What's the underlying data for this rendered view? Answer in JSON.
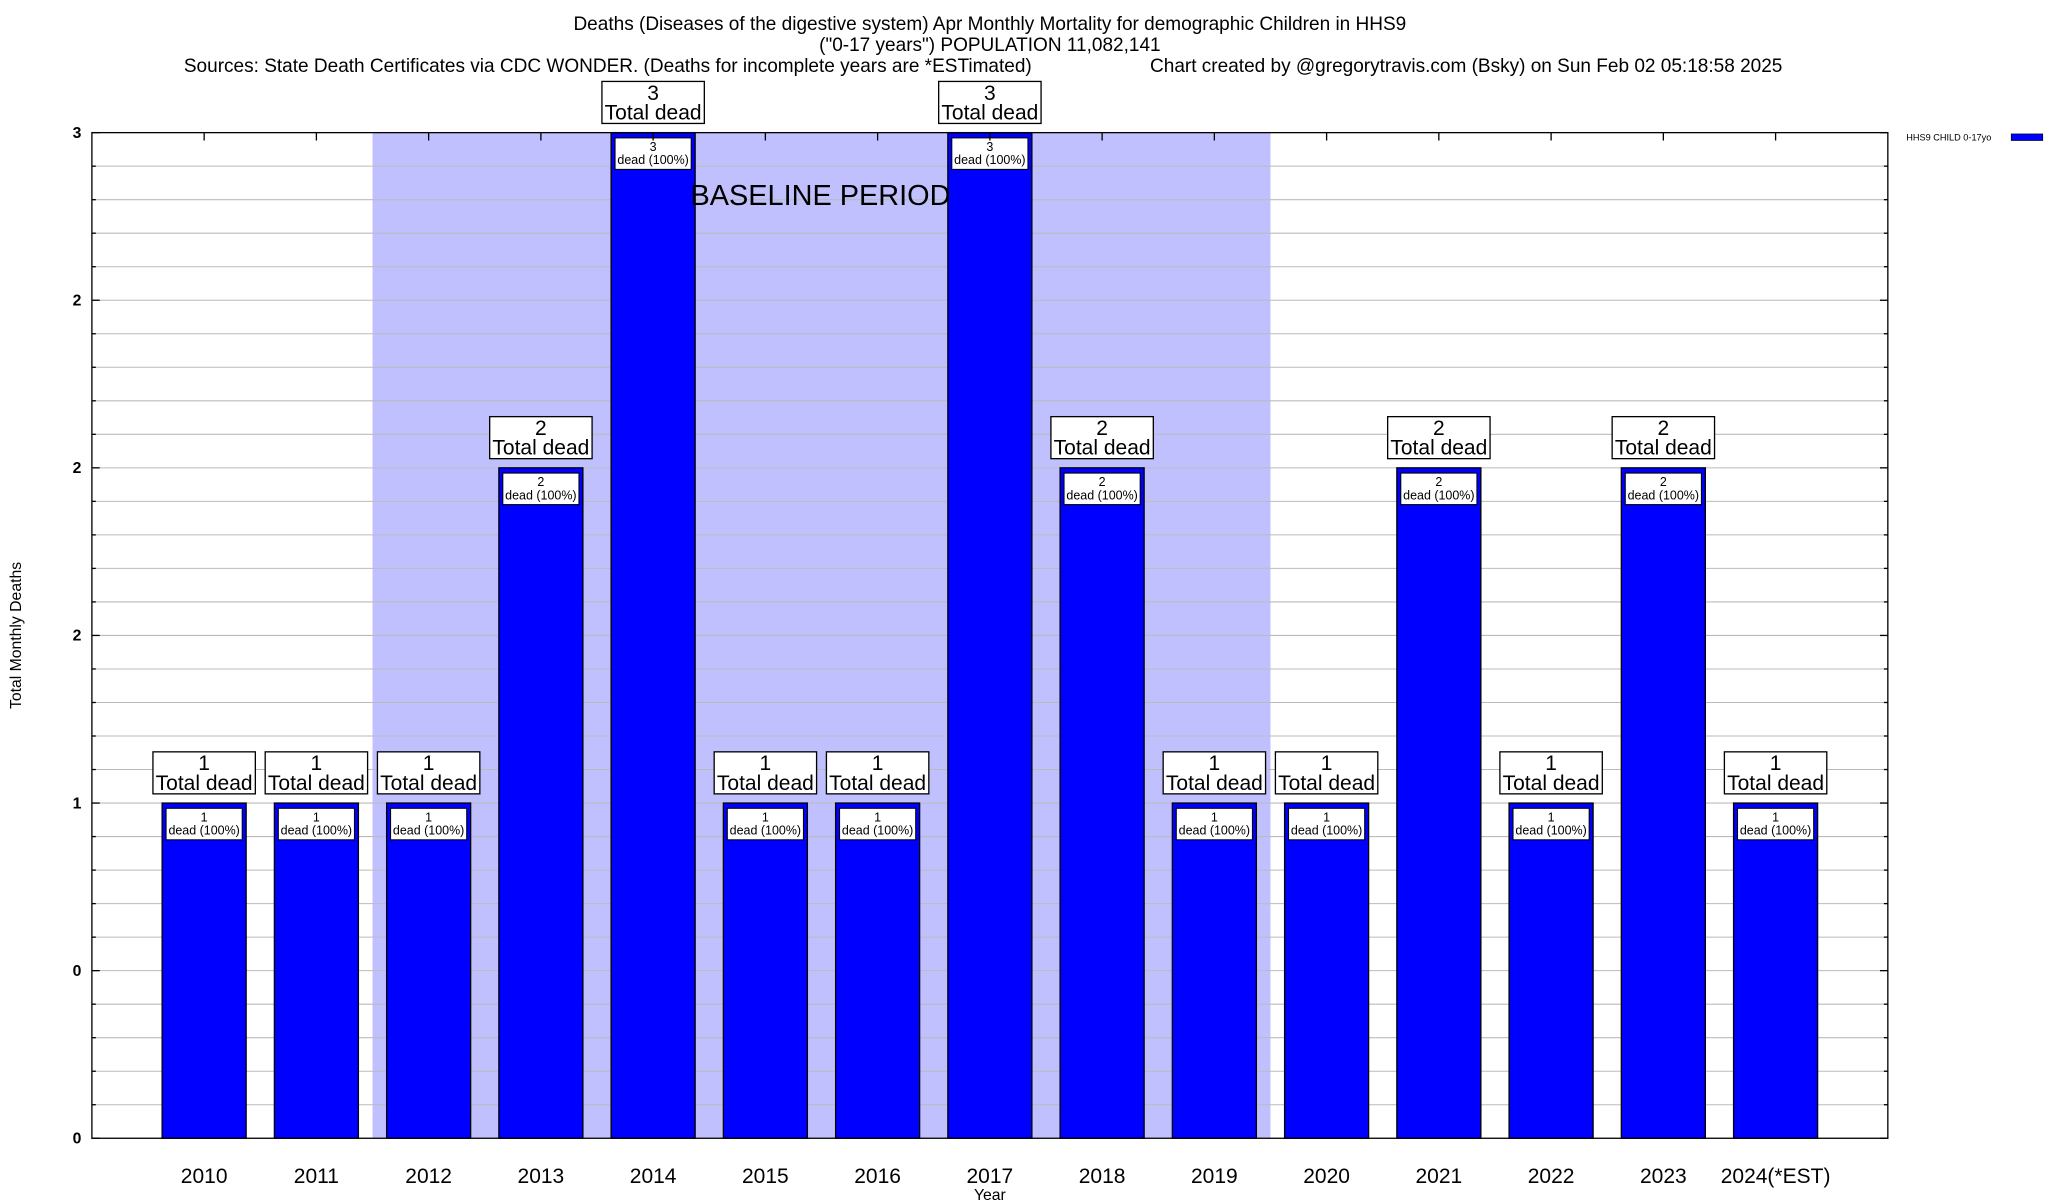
{
  "chart_data": {
    "type": "bar",
    "title_lines": [
      "Deaths (Diseases of the digestive system) Apr Monthly Mortality for demographic Children in HHS9",
      "(\"0-17 years\") POPULATION 11,082,141"
    ],
    "sources": "Sources: State Death Certificates via CDC WONDER. (Deaths for incomplete years are *ESTimated)",
    "credit": "Chart created by @gregorytravis.com (Bsky) on Sun Feb 02 05:18:58 2025",
    "xlabel": "Year",
    "ylabel": "Total Monthly Deaths",
    "ylim": [
      0,
      3
    ],
    "y_ticks": [
      0,
      0.5,
      1,
      1.5,
      2,
      2.5,
      3
    ],
    "y_tick_labels": [
      "0",
      "0",
      "1",
      "2",
      "2",
      "2",
      "3"
    ],
    "grid": true,
    "categories": [
      "2010",
      "2011",
      "2012",
      "2013",
      "2014",
      "2015",
      "2016",
      "2017",
      "2018",
      "2019",
      "2020",
      "2021",
      "2022",
      "2023",
      "2024(*EST)"
    ],
    "series": [
      {
        "name": "HHS9 CHILD 0-17yo",
        "color": "#0000ff",
        "values": [
          1,
          1,
          1,
          2,
          3,
          1,
          1,
          3,
          2,
          1,
          1,
          2,
          1,
          2,
          1
        ],
        "percents": [
          "100%",
          "100%",
          "100%",
          "100%",
          "100%",
          "100%",
          "100%",
          "100%",
          "100%",
          "100%",
          "100%",
          "100%",
          "100%",
          "100%",
          "100%"
        ]
      }
    ],
    "bar_label_total": "Total dead",
    "bar_label_dead": "dead",
    "baseline_period": {
      "label": "BASELINE PERIOD",
      "from": "2012",
      "to": "2019",
      "color": "#c0c0ff"
    },
    "legend": {
      "placement": "top-right",
      "label": "HHS9 CHILD 0-17yo"
    }
  }
}
